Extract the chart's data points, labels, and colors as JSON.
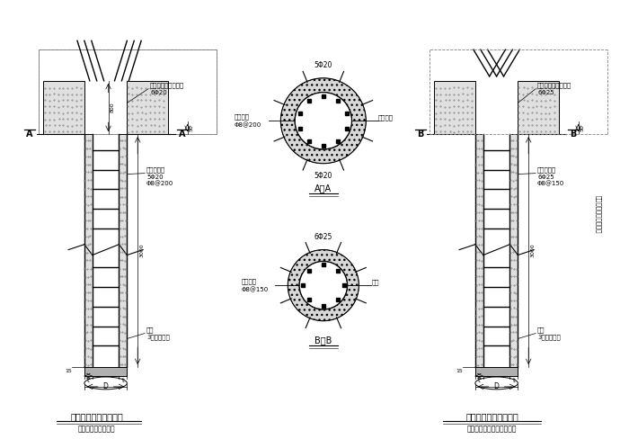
{
  "title1": "管桩与承台连接详图一",
  "subtitle1": "当管桩完整无破损时",
  "title4": "管桩与承台连接详图二",
  "subtitle4": "当管桩需要破桩头式施工时",
  "label_aa_top": "5Φ20",
  "label_aa_left1": "环型箍筋",
  "label_aa_left2": "Φ8@200",
  "label_aa_right": "管桩端板",
  "label_aa_bot": "5Φ20",
  "label_bb_top": "6Φ25",
  "label_bb_left1": "环型箍筋",
  "label_bb_left2": "Φ8@150",
  "label_bb_right": "管桩",
  "label_fig1_top1": "锚筋按图集要求施工",
  "label_fig1_top2": "6Φ20",
  "label_fig1_mid1": "抗拔桩主筋",
  "label_fig1_mid2": "5Φ20",
  "label_fig1_mid3": "Φ8@200",
  "label_fig1_bot1": "托板",
  "label_fig1_bot2": "3厚圆薄钢板",
  "label_fig2_top1": "锚筋按图集要求施工",
  "label_fig2_top2": "6Φ25",
  "label_fig2_mid1": "抗拔桩主筋",
  "label_fig2_mid2": "6Φ25",
  "label_fig2_mid3": "Φ8@150",
  "label_fig2_bot1": "托板",
  "label_fig2_bot2": "3厚圆薄钢板",
  "label_right_vert": "当桩需要破桩头式施工"
}
